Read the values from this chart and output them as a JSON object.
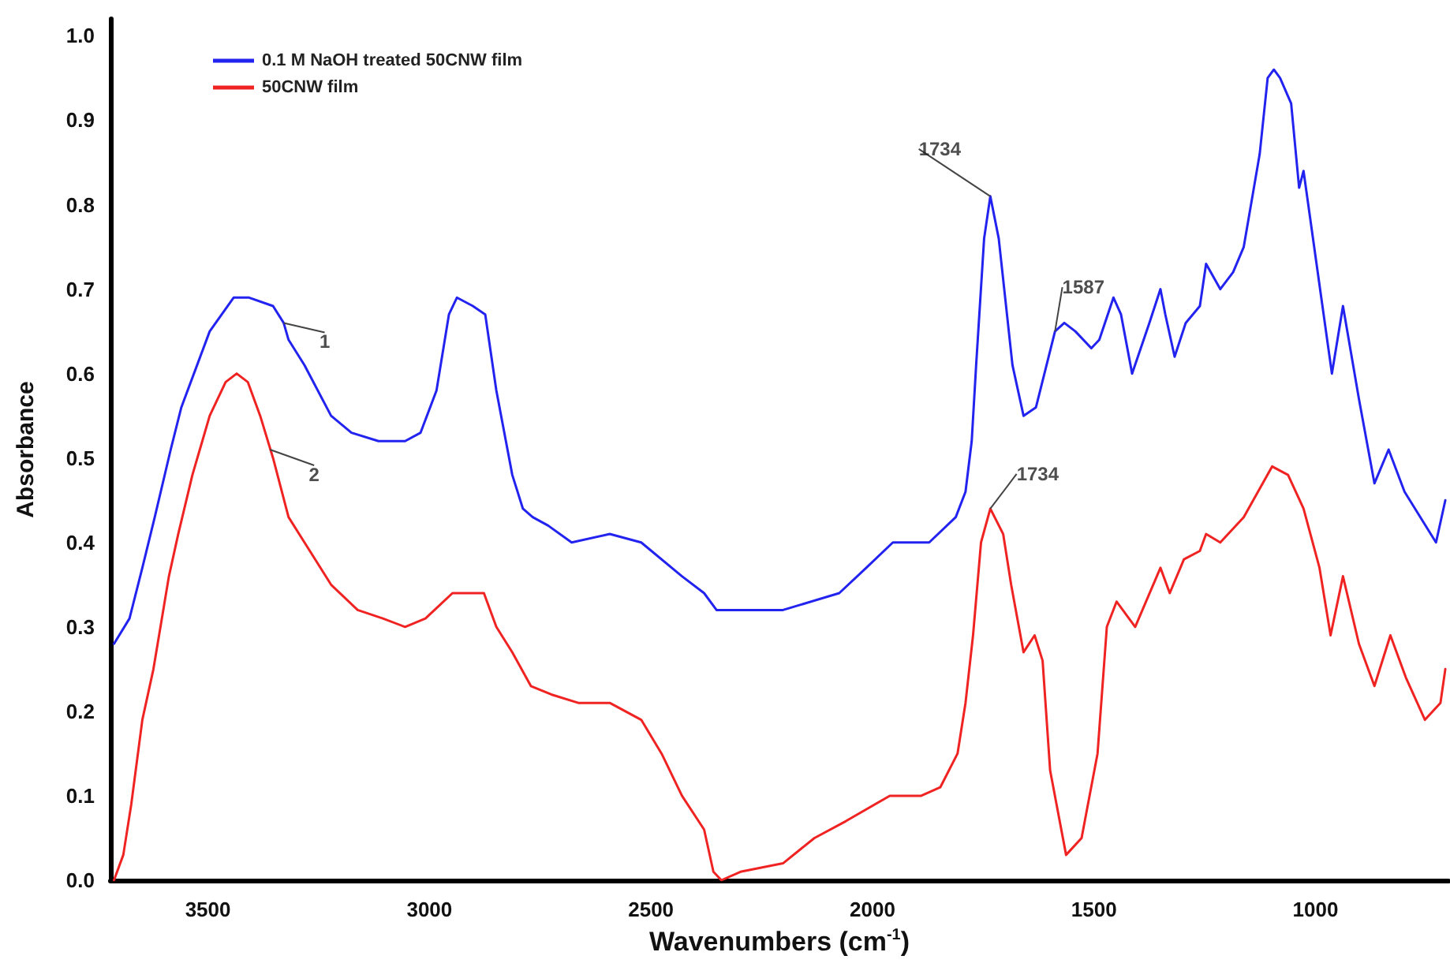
{
  "chart_data": {
    "type": "line",
    "xlabel": "Wavenumbers (cm$^{-1}$)",
    "ylabel": "Absorbance",
    "xlim": [
      3720,
      700
    ],
    "xticks": [
      3500,
      3000,
      2500,
      2000,
      1500,
      1000
    ],
    "ylim": [
      0,
      1.02
    ],
    "yticks": [
      {
        "value": 0,
        "label": "0.0"
      },
      0.1,
      0.2,
      0.3,
      0.4,
      0.5,
      0.6,
      0.7,
      0.8,
      0.9,
      {
        "value": 1,
        "label": "1.0"
      }
    ],
    "grid": false,
    "legend": "top left",
    "marker": "none",
    "line_style": "solid",
    "series": [
      {
        "name": "0.1 M NaOH treated 50CNW film",
        "color": "#2323f0",
        "x": [
          3712,
          3677,
          3648,
          3620,
          3584,
          3560,
          3496,
          3442,
          3407,
          3353,
          3329,
          3318,
          3282,
          3222,
          3176,
          3115,
          3055,
          3020,
          2984,
          2956,
          2938,
          2902,
          2874,
          2849,
          2813,
          2789,
          2767,
          2732,
          2679,
          2593,
          2522,
          2430,
          2380,
          2352,
          2274,
          2202,
          2075,
          2014,
          1954,
          1933,
          1872,
          1812,
          1790,
          1776,
          1766,
          1748,
          1734,
          1715,
          1684,
          1659,
          1631,
          1588,
          1567,
          1542,
          1506,
          1488,
          1456,
          1439,
          1414,
          1375,
          1350,
          1339,
          1318,
          1293,
          1261,
          1247,
          1215,
          1186,
          1162,
          1126,
          1108,
          1094,
          1080,
          1055,
          1037,
          1027,
          995,
          963,
          938,
          902,
          867,
          835,
          799,
          728,
          707
        ],
        "values": [
          0.28,
          0.31,
          0.37,
          0.43,
          0.51,
          0.56,
          0.65,
          0.69,
          0.69,
          0.68,
          0.66,
          0.64,
          0.61,
          0.55,
          0.53,
          0.52,
          0.52,
          0.53,
          0.58,
          0.67,
          0.69,
          0.68,
          0.67,
          0.58,
          0.48,
          0.44,
          0.43,
          0.42,
          0.4,
          0.41,
          0.4,
          0.36,
          0.34,
          0.32,
          0.32,
          0.32,
          0.34,
          0.37,
          0.4,
          0.4,
          0.4,
          0.43,
          0.46,
          0.52,
          0.61,
          0.76,
          0.81,
          0.76,
          0.61,
          0.55,
          0.56,
          0.65,
          0.66,
          0.65,
          0.63,
          0.64,
          0.69,
          0.67,
          0.6,
          0.66,
          0.7,
          0.67,
          0.62,
          0.66,
          0.68,
          0.73,
          0.7,
          0.72,
          0.75,
          0.86,
          0.95,
          0.96,
          0.95,
          0.92,
          0.82,
          0.84,
          0.72,
          0.6,
          0.68,
          0.57,
          0.47,
          0.51,
          0.46,
          0.4,
          0.45
        ]
      },
      {
        "name": "50CNW film",
        "color": "#f02323",
        "x": [
          3712,
          3691,
          3673,
          3648,
          3623,
          3588,
          3567,
          3535,
          3496,
          3460,
          3435,
          3410,
          3382,
          3353,
          3318,
          3282,
          3222,
          3162,
          3105,
          3055,
          3009,
          2948,
          2877,
          2849,
          2813,
          2771,
          2725,
          2664,
          2593,
          2522,
          2476,
          2430,
          2380,
          2359,
          2341,
          2298,
          2202,
          2131,
          2060,
          1961,
          1890,
          1847,
          1808,
          1790,
          1773,
          1755,
          1734,
          1705,
          1687,
          1659,
          1634,
          1616,
          1599,
          1563,
          1528,
          1492,
          1471,
          1449,
          1407,
          1350,
          1329,
          1297,
          1261,
          1247,
          1215,
          1162,
          1098,
          1062,
          1027,
          991,
          966,
          938,
          902,
          867,
          831,
          796,
          753,
          718,
          707
        ],
        "values": [
          0.0,
          0.03,
          0.09,
          0.19,
          0.25,
          0.36,
          0.41,
          0.48,
          0.55,
          0.59,
          0.6,
          0.59,
          0.55,
          0.5,
          0.43,
          0.4,
          0.35,
          0.32,
          0.31,
          0.3,
          0.31,
          0.34,
          0.34,
          0.3,
          0.27,
          0.23,
          0.22,
          0.21,
          0.21,
          0.19,
          0.15,
          0.1,
          0.06,
          0.01,
          0.0,
          0.01,
          0.02,
          0.05,
          0.07,
          0.1,
          0.1,
          0.11,
          0.15,
          0.21,
          0.29,
          0.4,
          0.44,
          0.41,
          0.35,
          0.27,
          0.29,
          0.26,
          0.13,
          0.03,
          0.05,
          0.15,
          0.3,
          0.33,
          0.3,
          0.37,
          0.34,
          0.38,
          0.39,
          0.41,
          0.4,
          0.43,
          0.49,
          0.48,
          0.44,
          0.37,
          0.29,
          0.36,
          0.28,
          0.23,
          0.29,
          0.24,
          0.19,
          0.21,
          0.25
        ]
      }
    ],
    "annotations": [
      {
        "text": "1",
        "x": 3329,
        "y": 0.66
      },
      {
        "text": "2",
        "x": 3360,
        "y": 0.51
      },
      {
        "text": "1734",
        "x": 1734,
        "y": 0.81
      },
      {
        "text": "1587",
        "x": 1588,
        "y": 0.65
      },
      {
        "text": "1734",
        "x": 1734,
        "y": 0.44
      }
    ]
  }
}
